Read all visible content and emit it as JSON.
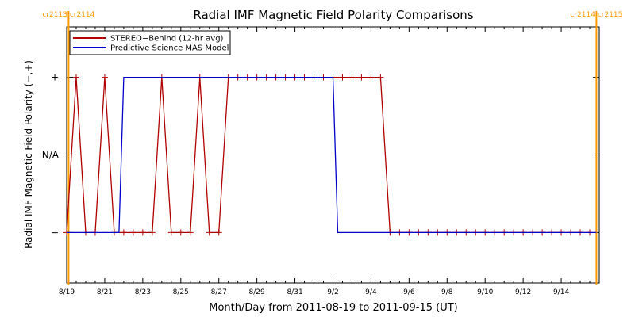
{
  "chart_data": {
    "type": "line",
    "title": "Radial IMF Magnetic Field Polarity Comparisons",
    "xlabel": "Month/Day from 2011-08-19 to 2011-09-15 (UT)",
    "ylabel": "Radial IMF Magnetic Field Polarity (−,+)",
    "xlim": [
      0,
      28
    ],
    "ylim": [
      -1.65,
      1.65
    ],
    "x_ticks": [
      {
        "x": 0,
        "label": "8/19"
      },
      {
        "x": 2,
        "label": "8/21"
      },
      {
        "x": 4,
        "label": "8/23"
      },
      {
        "x": 6,
        "label": "8/25"
      },
      {
        "x": 8,
        "label": "8/27"
      },
      {
        "x": 10,
        "label": "8/29"
      },
      {
        "x": 12,
        "label": "8/31"
      },
      {
        "x": 14,
        "label": "9/2"
      },
      {
        "x": 16,
        "label": "9/4"
      },
      {
        "x": 18,
        "label": "9/6"
      },
      {
        "x": 20,
        "label": "9/8"
      },
      {
        "x": 22,
        "label": "9/10"
      },
      {
        "x": 24,
        "label": "9/12"
      },
      {
        "x": 26,
        "label": "9/14"
      }
    ],
    "y_ticks": [
      {
        "y": 1,
        "label": "+"
      },
      {
        "y": 0,
        "label": "N/A"
      },
      {
        "y": -1,
        "label": "−"
      }
    ],
    "carrington_lines": [
      {
        "x": 0.1,
        "label": "cr2113 cr2114",
        "color": "#ff9900"
      },
      {
        "x": 27.85,
        "label": "cr2114 cr2115",
        "color": "#ff9900"
      }
    ],
    "legend": {
      "position": "top-left"
    },
    "series": [
      {
        "name": "STEREO−Behind (12-hr avg)",
        "color": "#b00000",
        "markers": true,
        "x": [
          0,
          0.5,
          1.0,
          1.5,
          2.0,
          2.5,
          3.0,
          3.5,
          4.0,
          4.5,
          5.0,
          5.5,
          6.0,
          6.5,
          7.0,
          7.5,
          8.0,
          8.5,
          9.0,
          9.5,
          10.0,
          10.5,
          11.0,
          11.5,
          12.0,
          12.5,
          13.0,
          13.5,
          14.0,
          14.5,
          15.0,
          15.5,
          16.0,
          16.5,
          17.0,
          17.5,
          18.0,
          18.5,
          19.0,
          19.5,
          20.0,
          20.5,
          21.0,
          21.5,
          22.0,
          22.5,
          23.0,
          23.5,
          24.0,
          24.5,
          25.0,
          25.5,
          26.0,
          26.5,
          27.0,
          27.5
        ],
        "y": [
          -1,
          1,
          -1,
          -1,
          1,
          -1,
          -1,
          -1,
          -1,
          -1,
          1,
          -1,
          -1,
          -1,
          1,
          -1,
          -1,
          1,
          1,
          1,
          1,
          1,
          1,
          1,
          1,
          1,
          1,
          1,
          1,
          1,
          1,
          1,
          1,
          1,
          -1,
          -1,
          -1,
          -1,
          -1,
          -1,
          -1,
          -1,
          -1,
          -1,
          -1,
          -1,
          -1,
          -1,
          -1,
          -1,
          -1,
          -1,
          -1,
          -1,
          -1,
          -1
        ]
      },
      {
        "name": "Predictive Science MAS Model",
        "color": "#0000cc",
        "markers": false,
        "x": [
          0,
          2.75,
          3.0,
          14.0,
          14.25,
          27.85
        ],
        "y": [
          -1,
          -1,
          1,
          1,
          -1,
          -1
        ]
      }
    ]
  }
}
